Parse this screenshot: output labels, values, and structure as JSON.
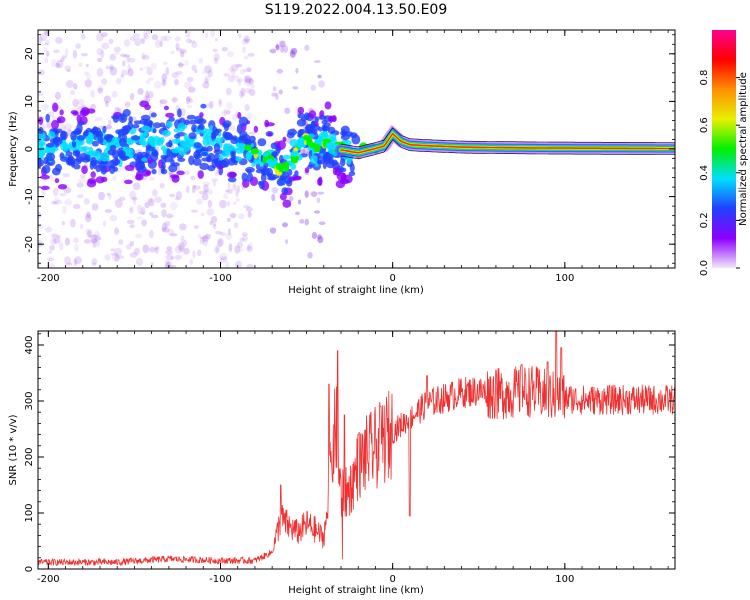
{
  "title": "S119.2022.004.13.50.E09",
  "chart_data": [
    {
      "type": "heatmap",
      "xlabel": "Height of straight line (km)",
      "ylabel": "Frequency (Hz)",
      "xlim": [
        -206,
        164
      ],
      "ylim": [
        -25,
        25
      ],
      "xticks": [
        -200,
        -100,
        0,
        100
      ],
      "yticks": [
        -20,
        -10,
        0,
        10,
        20
      ],
      "colorbar": {
        "label": "Normalized spectral amplitude",
        "range": [
          0,
          1
        ],
        "ticks": [
          0.0,
          0.2,
          0.4,
          0.6,
          0.8
        ],
        "colors": [
          "#f2e6fb",
          "#8c00ff",
          "#2040ff",
          "#00e0ff",
          "#00f000",
          "#e8f000",
          "#ff9000",
          "#ff0000",
          "#ff0090"
        ]
      },
      "ridge": [
        [
          -206,
          0.5
        ],
        [
          -180,
          0.8
        ],
        [
          -160,
          0.3
        ],
        [
          -140,
          1.5
        ],
        [
          -120,
          2.0
        ],
        [
          -100,
          1.0
        ],
        [
          -85,
          -0.5
        ],
        [
          -75,
          -1.5
        ],
        [
          -65,
          -4.5
        ],
        [
          -60,
          -3.0
        ],
        [
          -50,
          2.5
        ],
        [
          -45,
          -0.5
        ],
        [
          -40,
          2.0
        ],
        [
          -30,
          -0.2
        ],
        [
          -20,
          -0.8
        ],
        [
          -10,
          0.1
        ],
        [
          -5,
          0.6
        ],
        [
          0,
          3.2
        ],
        [
          5,
          1.6
        ],
        [
          10,
          0.9
        ],
        [
          20,
          0.7
        ],
        [
          40,
          0.4
        ],
        [
          60,
          0.3
        ],
        [
          90,
          0.2
        ],
        [
          164,
          0.1
        ]
      ]
    },
    {
      "type": "line",
      "xlabel": "Height of straight line (km)",
      "ylabel": "SNR (10 * v/v)",
      "xlim": [
        -206,
        164
      ],
      "ylim": [
        0,
        425
      ],
      "xticks": [
        -200,
        -100,
        0,
        100
      ],
      "yticks": [
        0,
        100,
        200,
        300,
        400
      ],
      "color": "#f03030",
      "envelope": [
        [
          -206,
          12
        ],
        [
          -160,
          12
        ],
        [
          -130,
          18
        ],
        [
          -100,
          15
        ],
        [
          -80,
          15
        ],
        [
          -70,
          30
        ],
        [
          -65,
          90
        ],
        [
          -60,
          75
        ],
        [
          -55,
          65
        ],
        [
          -50,
          80
        ],
        [
          -45,
          70
        ],
        [
          -40,
          55
        ],
        [
          -37,
          150
        ],
        [
          -33,
          260
        ],
        [
          -30,
          130
        ],
        [
          -25,
          140
        ],
        [
          -20,
          185
        ],
        [
          -15,
          205
        ],
        [
          -10,
          215
        ],
        [
          -5,
          230
        ],
        [
          0,
          245
        ],
        [
          10,
          270
        ],
        [
          20,
          295
        ],
        [
          30,
          305
        ],
        [
          40,
          315
        ],
        [
          50,
          318
        ],
        [
          60,
          312
        ],
        [
          70,
          315
        ],
        [
          80,
          318
        ],
        [
          90,
          310
        ],
        [
          100,
          305
        ],
        [
          110,
          302
        ],
        [
          130,
          302
        ],
        [
          164,
          302
        ]
      ],
      "spikes": [
        [
          -65,
          150
        ],
        [
          -37,
          330
        ],
        [
          -32,
          390
        ],
        [
          -28,
          275
        ],
        [
          -20,
          240
        ],
        [
          -7,
          290
        ],
        [
          10,
          95
        ],
        [
          20,
          345
        ],
        [
          60,
          355
        ],
        [
          75,
          365
        ],
        [
          90,
          370
        ],
        [
          95,
          425
        ],
        [
          98,
          395
        ]
      ]
    }
  ]
}
